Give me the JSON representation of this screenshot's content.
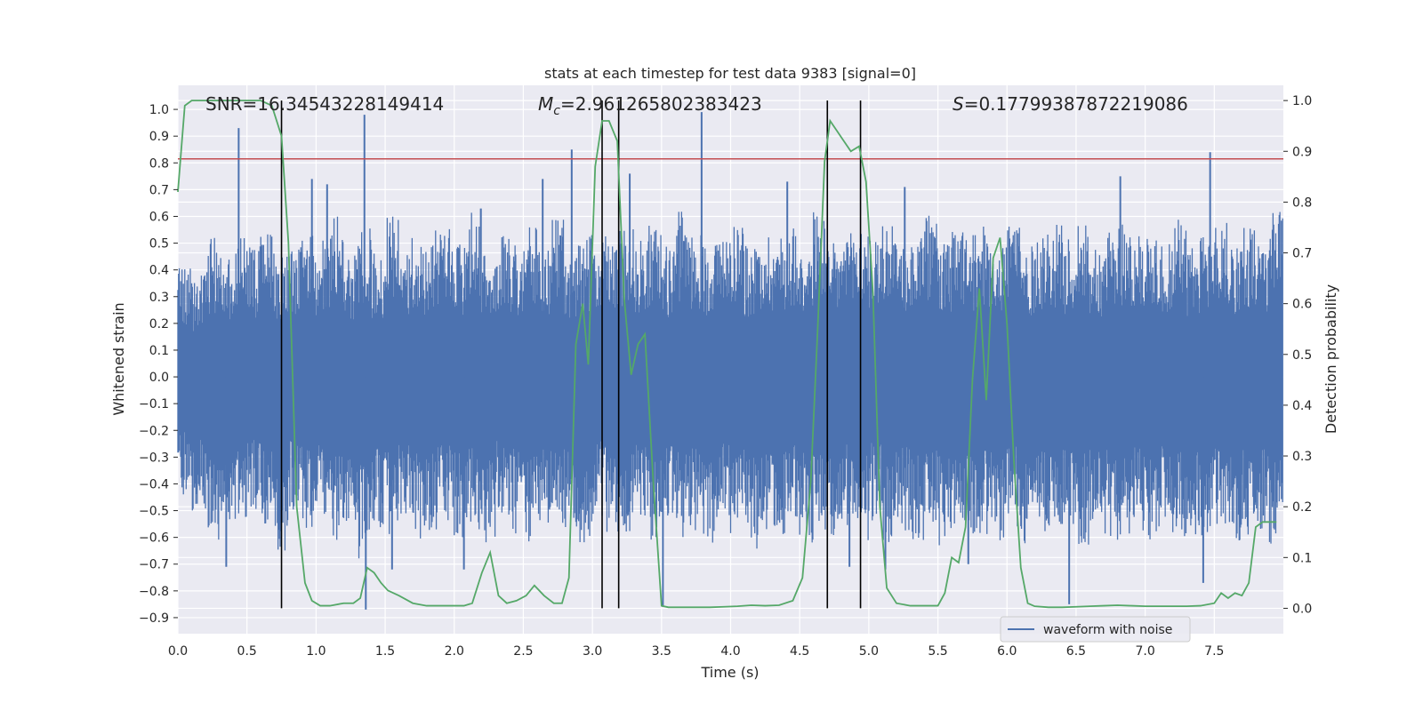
{
  "chart_data": {
    "type": "line",
    "title": "stats at each timestep for test data 9383 [signal=0]",
    "xlabel": "Time (s)",
    "ylabel": "Whitened strain",
    "y2label": "Detection probability",
    "xlim": [
      0.0,
      8.0
    ],
    "ylim": [
      -0.96,
      1.09
    ],
    "y2lim": [
      -0.05,
      1.03
    ],
    "x_ticks": [
      0.0,
      0.5,
      1.0,
      1.5,
      2.0,
      2.5,
      3.0,
      3.5,
      4.0,
      4.5,
      5.0,
      5.5,
      6.0,
      6.5,
      7.0,
      7.5
    ],
    "x_tick_labels": [
      "0.0",
      "0.5",
      "1.0",
      "1.5",
      "2.0",
      "2.5",
      "3.0",
      "3.5",
      "4.0",
      "4.5",
      "5.0",
      "5.5",
      "6.0",
      "6.5",
      "7.0",
      "7.5"
    ],
    "y_ticks": [
      1.0,
      0.9,
      0.8,
      0.7,
      0.6,
      0.5,
      0.4,
      0.3,
      0.2,
      0.1,
      0.0,
      -0.1,
      -0.2,
      -0.3,
      -0.4,
      -0.5,
      -0.6,
      -0.7,
      -0.8,
      -0.9
    ],
    "y_tick_labels": [
      "1.0",
      "0.9",
      "0.8",
      "0.7",
      "0.6",
      "0.5",
      "0.4",
      "0.3",
      "0.2",
      "0.1",
      "0.0",
      "−0.1",
      "−0.2",
      "−0.3",
      "−0.4",
      "−0.5",
      "−0.6",
      "−0.7",
      "−0.8",
      "−0.9"
    ],
    "y2_ticks": [
      1.0,
      0.9,
      0.8,
      0.7,
      0.6,
      0.5,
      0.4,
      0.3,
      0.2,
      0.1,
      0.0
    ],
    "y2_tick_labels": [
      "1.0",
      "0.9",
      "0.8",
      "0.7",
      "0.6",
      "0.5",
      "0.4",
      "0.3",
      "0.2",
      "0.1",
      "0.0"
    ],
    "grid": true,
    "background": "#eaeaf2",
    "annotations": {
      "snr": "SNR=16.34543228149414",
      "mc_symbol": "M",
      "mc_sub": "c",
      "mc_value": "=2.961265802383423",
      "s_symbol": "S",
      "s_value": "=0.17799387872219086"
    },
    "legend": {
      "position": "lower-center-right",
      "entries": [
        "waveform with noise"
      ]
    },
    "waveform": {
      "name": "waveform with noise",
      "color": "#4c72b0",
      "envelope_top": [
        0.42,
        0.38,
        0.52,
        0.45,
        0.58,
        0.49,
        0.55,
        0.47,
        0.5,
        0.53,
        0.51,
        0.62,
        0.46,
        0.57,
        0.48,
        0.6,
        0.52,
        0.49,
        0.55,
        0.58,
        0.5,
        0.63,
        0.47,
        0.54,
        0.51,
        0.56,
        0.49,
        0.61,
        0.48,
        0.53,
        0.55,
        0.5,
        0.58,
        0.52,
        0.57,
        0.49,
        0.62,
        0.54,
        0.51,
        0.56,
        0.6,
        0.49,
        0.55,
        0.53,
        0.58,
        0.51,
        0.63,
        0.5,
        0.54,
        0.57,
        0.52,
        0.59,
        0.48,
        0.55,
        0.61,
        0.5,
        0.56,
        0.53,
        0.58,
        0.51,
        0.62,
        0.49,
        0.55,
        0.57,
        0.52,
        0.6,
        0.5,
        0.54,
        0.58,
        0.53,
        0.56,
        0.51,
        0.61,
        0.49,
        0.55,
        0.58,
        0.52,
        0.57,
        0.5,
        0.62
      ],
      "envelope_bottom": [
        -0.45,
        -0.5,
        -0.62,
        -0.55,
        -0.6,
        -0.52,
        -0.58,
        -0.65,
        -0.53,
        -0.59,
        -0.56,
        -0.61,
        -0.54,
        -0.68,
        -0.57,
        -0.6,
        -0.52,
        -0.63,
        -0.58,
        -0.55,
        -0.61,
        -0.57,
        -0.66,
        -0.53,
        -0.59,
        -0.62,
        -0.55,
        -0.6,
        -0.57,
        -0.64,
        -0.52,
        -0.58,
        -0.61,
        -0.56,
        -0.63,
        -0.55,
        -0.6,
        -0.58,
        -0.62,
        -0.54,
        -0.59,
        -0.66,
        -0.57,
        -0.61,
        -0.55,
        -0.63,
        -0.58,
        -0.6,
        -0.56,
        -0.62,
        -0.54,
        -0.65,
        -0.58,
        -0.61,
        -0.57,
        -0.63,
        -0.55,
        -0.6,
        -0.59,
        -0.62,
        -0.56,
        -0.64,
        -0.58,
        -0.61,
        -0.55,
        -0.63,
        -0.57,
        -0.6,
        -0.62,
        -0.58,
        -0.65,
        -0.56,
        -0.61,
        -0.59,
        -0.63,
        -0.57,
        -0.62,
        -0.6,
        -0.58,
        -0.64
      ],
      "spikes": [
        {
          "x": 0.44,
          "y": 0.93
        },
        {
          "x": 1.35,
          "y": 0.98
        },
        {
          "x": 3.79,
          "y": 0.99
        },
        {
          "x": 2.85,
          "y": 0.85
        },
        {
          "x": 3.27,
          "y": 0.76
        },
        {
          "x": 7.47,
          "y": 0.84
        },
        {
          "x": 0.97,
          "y": 0.74
        },
        {
          "x": 1.08,
          "y": 0.72
        },
        {
          "x": 5.26,
          "y": 0.71
        },
        {
          "x": 6.82,
          "y": 0.75
        },
        {
          "x": 2.64,
          "y": 0.74
        },
        {
          "x": 4.41,
          "y": 0.73
        },
        {
          "x": 1.36,
          "y": -0.87
        },
        {
          "x": 3.51,
          "y": -0.86
        },
        {
          "x": 6.45,
          "y": -0.85
        },
        {
          "x": 0.35,
          "y": -0.71
        },
        {
          "x": 1.55,
          "y": -0.72
        },
        {
          "x": 2.07,
          "y": -0.72
        },
        {
          "x": 4.86,
          "y": -0.71
        },
        {
          "x": 5.12,
          "y": -0.72
        },
        {
          "x": 7.42,
          "y": -0.77
        },
        {
          "x": 5.72,
          "y": -0.7
        }
      ]
    },
    "detection_probability": {
      "color": "#55a868",
      "x": [
        0.0,
        0.05,
        0.1,
        0.2,
        0.3,
        0.4,
        0.5,
        0.6,
        0.68,
        0.75,
        0.8,
        0.86,
        0.92,
        0.97,
        1.03,
        1.1,
        1.2,
        1.27,
        1.32,
        1.37,
        1.42,
        1.47,
        1.52,
        1.6,
        1.7,
        1.8,
        1.9,
        2.0,
        2.07,
        2.13,
        2.2,
        2.26,
        2.32,
        2.38,
        2.45,
        2.52,
        2.58,
        2.65,
        2.72,
        2.78,
        2.83,
        2.88,
        2.93,
        2.97,
        3.02,
        3.07,
        3.12,
        3.18,
        3.23,
        3.28,
        3.33,
        3.38,
        3.44,
        3.5,
        3.55,
        3.65,
        3.75,
        3.85,
        3.95,
        4.05,
        4.15,
        4.25,
        4.35,
        4.45,
        4.52,
        4.58,
        4.63,
        4.68,
        4.72,
        4.77,
        4.82,
        4.87,
        4.93,
        4.98,
        5.03,
        5.08,
        5.13,
        5.2,
        5.3,
        5.4,
        5.5,
        5.55,
        5.6,
        5.65,
        5.7,
        5.75,
        5.8,
        5.85,
        5.9,
        5.95,
        6.0,
        6.05,
        6.1,
        6.15,
        6.2,
        6.3,
        6.4,
        6.5,
        6.6,
        6.7,
        6.8,
        6.9,
        7.0,
        7.1,
        7.2,
        7.3,
        7.4,
        7.5,
        7.55,
        7.6,
        7.65,
        7.7,
        7.75,
        7.8,
        7.85,
        7.9,
        7.95
      ],
      "y": [
        0.82,
        0.99,
        1.0,
        1.0,
        1.0,
        1.0,
        1.0,
        1.0,
        0.99,
        0.93,
        0.72,
        0.2,
        0.05,
        0.015,
        0.005,
        0.005,
        0.01,
        0.01,
        0.02,
        0.08,
        0.07,
        0.05,
        0.035,
        0.025,
        0.01,
        0.005,
        0.005,
        0.005,
        0.005,
        0.01,
        0.07,
        0.11,
        0.025,
        0.01,
        0.015,
        0.025,
        0.045,
        0.025,
        0.01,
        0.01,
        0.06,
        0.52,
        0.6,
        0.48,
        0.87,
        0.96,
        0.96,
        0.92,
        0.61,
        0.46,
        0.52,
        0.54,
        0.25,
        0.005,
        0.002,
        0.002,
        0.002,
        0.002,
        0.003,
        0.004,
        0.006,
        0.005,
        0.006,
        0.015,
        0.06,
        0.25,
        0.55,
        0.88,
        0.96,
        0.94,
        0.92,
        0.9,
        0.91,
        0.84,
        0.62,
        0.2,
        0.04,
        0.01,
        0.005,
        0.005,
        0.005,
        0.03,
        0.1,
        0.09,
        0.16,
        0.45,
        0.63,
        0.41,
        0.69,
        0.73,
        0.56,
        0.29,
        0.08,
        0.01,
        0.004,
        0.002,
        0.002,
        0.003,
        0.004,
        0.005,
        0.006,
        0.005,
        0.004,
        0.004,
        0.004,
        0.004,
        0.005,
        0.01,
        0.03,
        0.02,
        0.03,
        0.025,
        0.05,
        0.16,
        0.17,
        0.17,
        0.17
      ]
    },
    "threshold_line": {
      "y": 0.815,
      "color": "#c44e52"
    },
    "vertical_markers": [
      0.75,
      3.07,
      3.19,
      4.7,
      4.94
    ]
  }
}
